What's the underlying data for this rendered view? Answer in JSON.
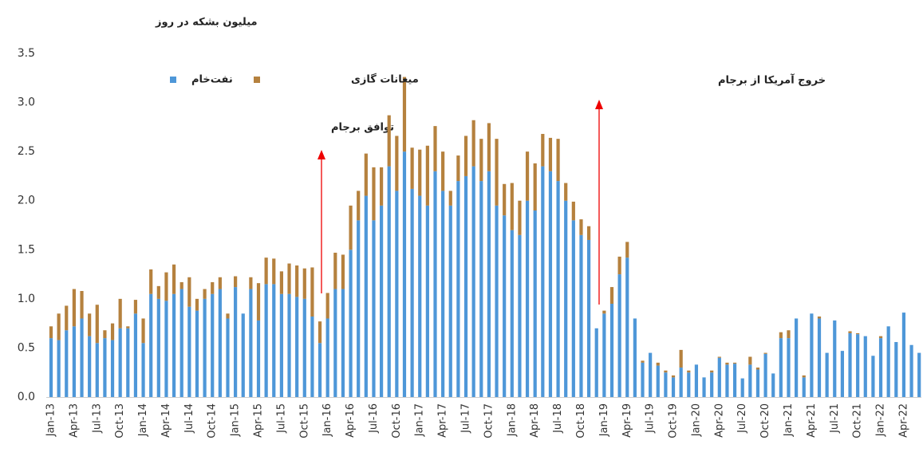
{
  "chart_data": {
    "type": "stacked-bar",
    "y_label": "میلیون بشکه در روز",
    "annotations": [
      "توافق برجام",
      "خروج آمریکا از برجام"
    ],
    "categories": [
      "Jan-13",
      null,
      null,
      "Apr-13",
      null,
      null,
      "Jul-13",
      null,
      null,
      "Oct-13",
      null,
      null,
      "Jan-14",
      null,
      null,
      "Apr-14",
      null,
      null,
      "Jul-14",
      null,
      null,
      "Oct-14",
      null,
      null,
      "Jan-15",
      null,
      null,
      "Apr-15",
      null,
      null,
      "Jul-15",
      null,
      null,
      "Oct-15",
      null,
      null,
      "Jan-16",
      null,
      null,
      "Apr-16",
      null,
      null,
      "Jul-16",
      null,
      null,
      "Oct-16",
      null,
      null,
      "Jan-17",
      null,
      null,
      "Apr-17",
      null,
      null,
      "Jul-17",
      null,
      null,
      "Oct-17",
      null,
      null,
      "Jan-18",
      null,
      null,
      "Apr-18",
      null,
      null,
      "Jul-18",
      null,
      null,
      "Oct-18",
      null,
      null,
      "Jan-19",
      null,
      null,
      "Apr-19",
      null,
      null,
      "Jul-19",
      null,
      null,
      "Oct-19",
      null,
      null,
      "Jan-20",
      null,
      null,
      "Apr-20",
      null,
      null,
      "Jul-20",
      null,
      null,
      "Oct-20",
      null,
      null,
      "Jan-21",
      null,
      null,
      "Apr-21",
      null,
      null,
      "Jul-21",
      null,
      null,
      "Oct-21",
      null,
      null,
      "Jan-22",
      null,
      null,
      "Apr-22",
      null,
      null
    ],
    "series": [
      {
        "name": "نفت‌خام",
        "color": "#4e97d8",
        "values": [
          0.6,
          0.58,
          0.68,
          0.72,
          0.8,
          0.62,
          0.55,
          0.6,
          0.58,
          0.7,
          0.7,
          0.85,
          0.55,
          1.05,
          1.0,
          0.98,
          1.05,
          1.1,
          0.92,
          0.88,
          1.0,
          1.05,
          1.1,
          0.8,
          1.12,
          0.85,
          1.1,
          0.78,
          1.15,
          1.15,
          1.05,
          1.05,
          1.02,
          1.0,
          0.82,
          0.55,
          0.8,
          1.1,
          1.1,
          1.5,
          1.8,
          2.05,
          1.8,
          1.95,
          2.35,
          2.1,
          2.5,
          2.12,
          2.05,
          1.95,
          2.3,
          2.1,
          1.95,
          2.2,
          2.25,
          2.35,
          2.2,
          2.3,
          1.95,
          1.85,
          1.7,
          1.65,
          2.0,
          1.9,
          2.35,
          2.3,
          2.2,
          2.0,
          1.8,
          1.65,
          1.6,
          0.7,
          0.85,
          0.95,
          1.25,
          1.42,
          0.8,
          0.35,
          0.45,
          0.32,
          0.25,
          0.2,
          0.3,
          0.25,
          0.33,
          0.2,
          0.25,
          0.4,
          0.33,
          0.34,
          0.19,
          0.33,
          0.28,
          0.44,
          0.24,
          0.6,
          0.6,
          0.8,
          0.2,
          0.85,
          0.8,
          0.45,
          0.78,
          0.47,
          0.65,
          0.64,
          0.62,
          0.42,
          0.6,
          0.72,
          0.56,
          0.86,
          0.53,
          0.45
        ]
      },
      {
        "name": "میعانات گازی",
        "color": "#b5813e",
        "values": [
          0.12,
          0.27,
          0.25,
          0.38,
          0.28,
          0.23,
          0.39,
          0.08,
          0.17,
          0.3,
          0.02,
          0.14,
          0.25,
          0.25,
          0.13,
          0.29,
          0.3,
          0.07,
          0.3,
          0.12,
          0.1,
          0.12,
          0.12,
          0.05,
          0.11,
          0,
          0.12,
          0.38,
          0.27,
          0.26,
          0.23,
          0.31,
          0.32,
          0.31,
          0.5,
          0.22,
          0.26,
          0.37,
          0.35,
          0.45,
          0.3,
          0.43,
          0.54,
          0.39,
          0.52,
          0.56,
          0.76,
          0.42,
          0.47,
          0.61,
          0.46,
          0.4,
          0.15,
          0.26,
          0.41,
          0.47,
          0.43,
          0.49,
          0.68,
          0.32,
          0.48,
          0.35,
          0.5,
          0.48,
          0.33,
          0.34,
          0.43,
          0.18,
          0.19,
          0.16,
          0.14,
          0,
          0.03,
          0.17,
          0.18,
          0.16,
          0,
          0.02,
          0,
          0.03,
          0.02,
          0.02,
          0.18,
          0.02,
          0,
          0,
          0.02,
          0.01,
          0.02,
          0.01,
          0,
          0.08,
          0.02,
          0.01,
          0,
          0.06,
          0.08,
          0,
          0.02,
          0,
          0.02,
          0,
          0,
          0,
          0.02,
          0.01,
          0,
          0,
          0.02,
          0,
          0,
          0,
          0,
          0
        ]
      }
    ],
    "ylim": [
      0,
      3.5
    ],
    "yticks": [
      {
        "value": 0,
        "label": "0.0"
      },
      0.5,
      {
        "value": 1,
        "label": "1.0"
      },
      1.5,
      {
        "value": 2,
        "label": "2.0"
      },
      2.5,
      {
        "value": 3,
        "label": "3.0"
      },
      3.5
    ],
    "grid": false
  }
}
